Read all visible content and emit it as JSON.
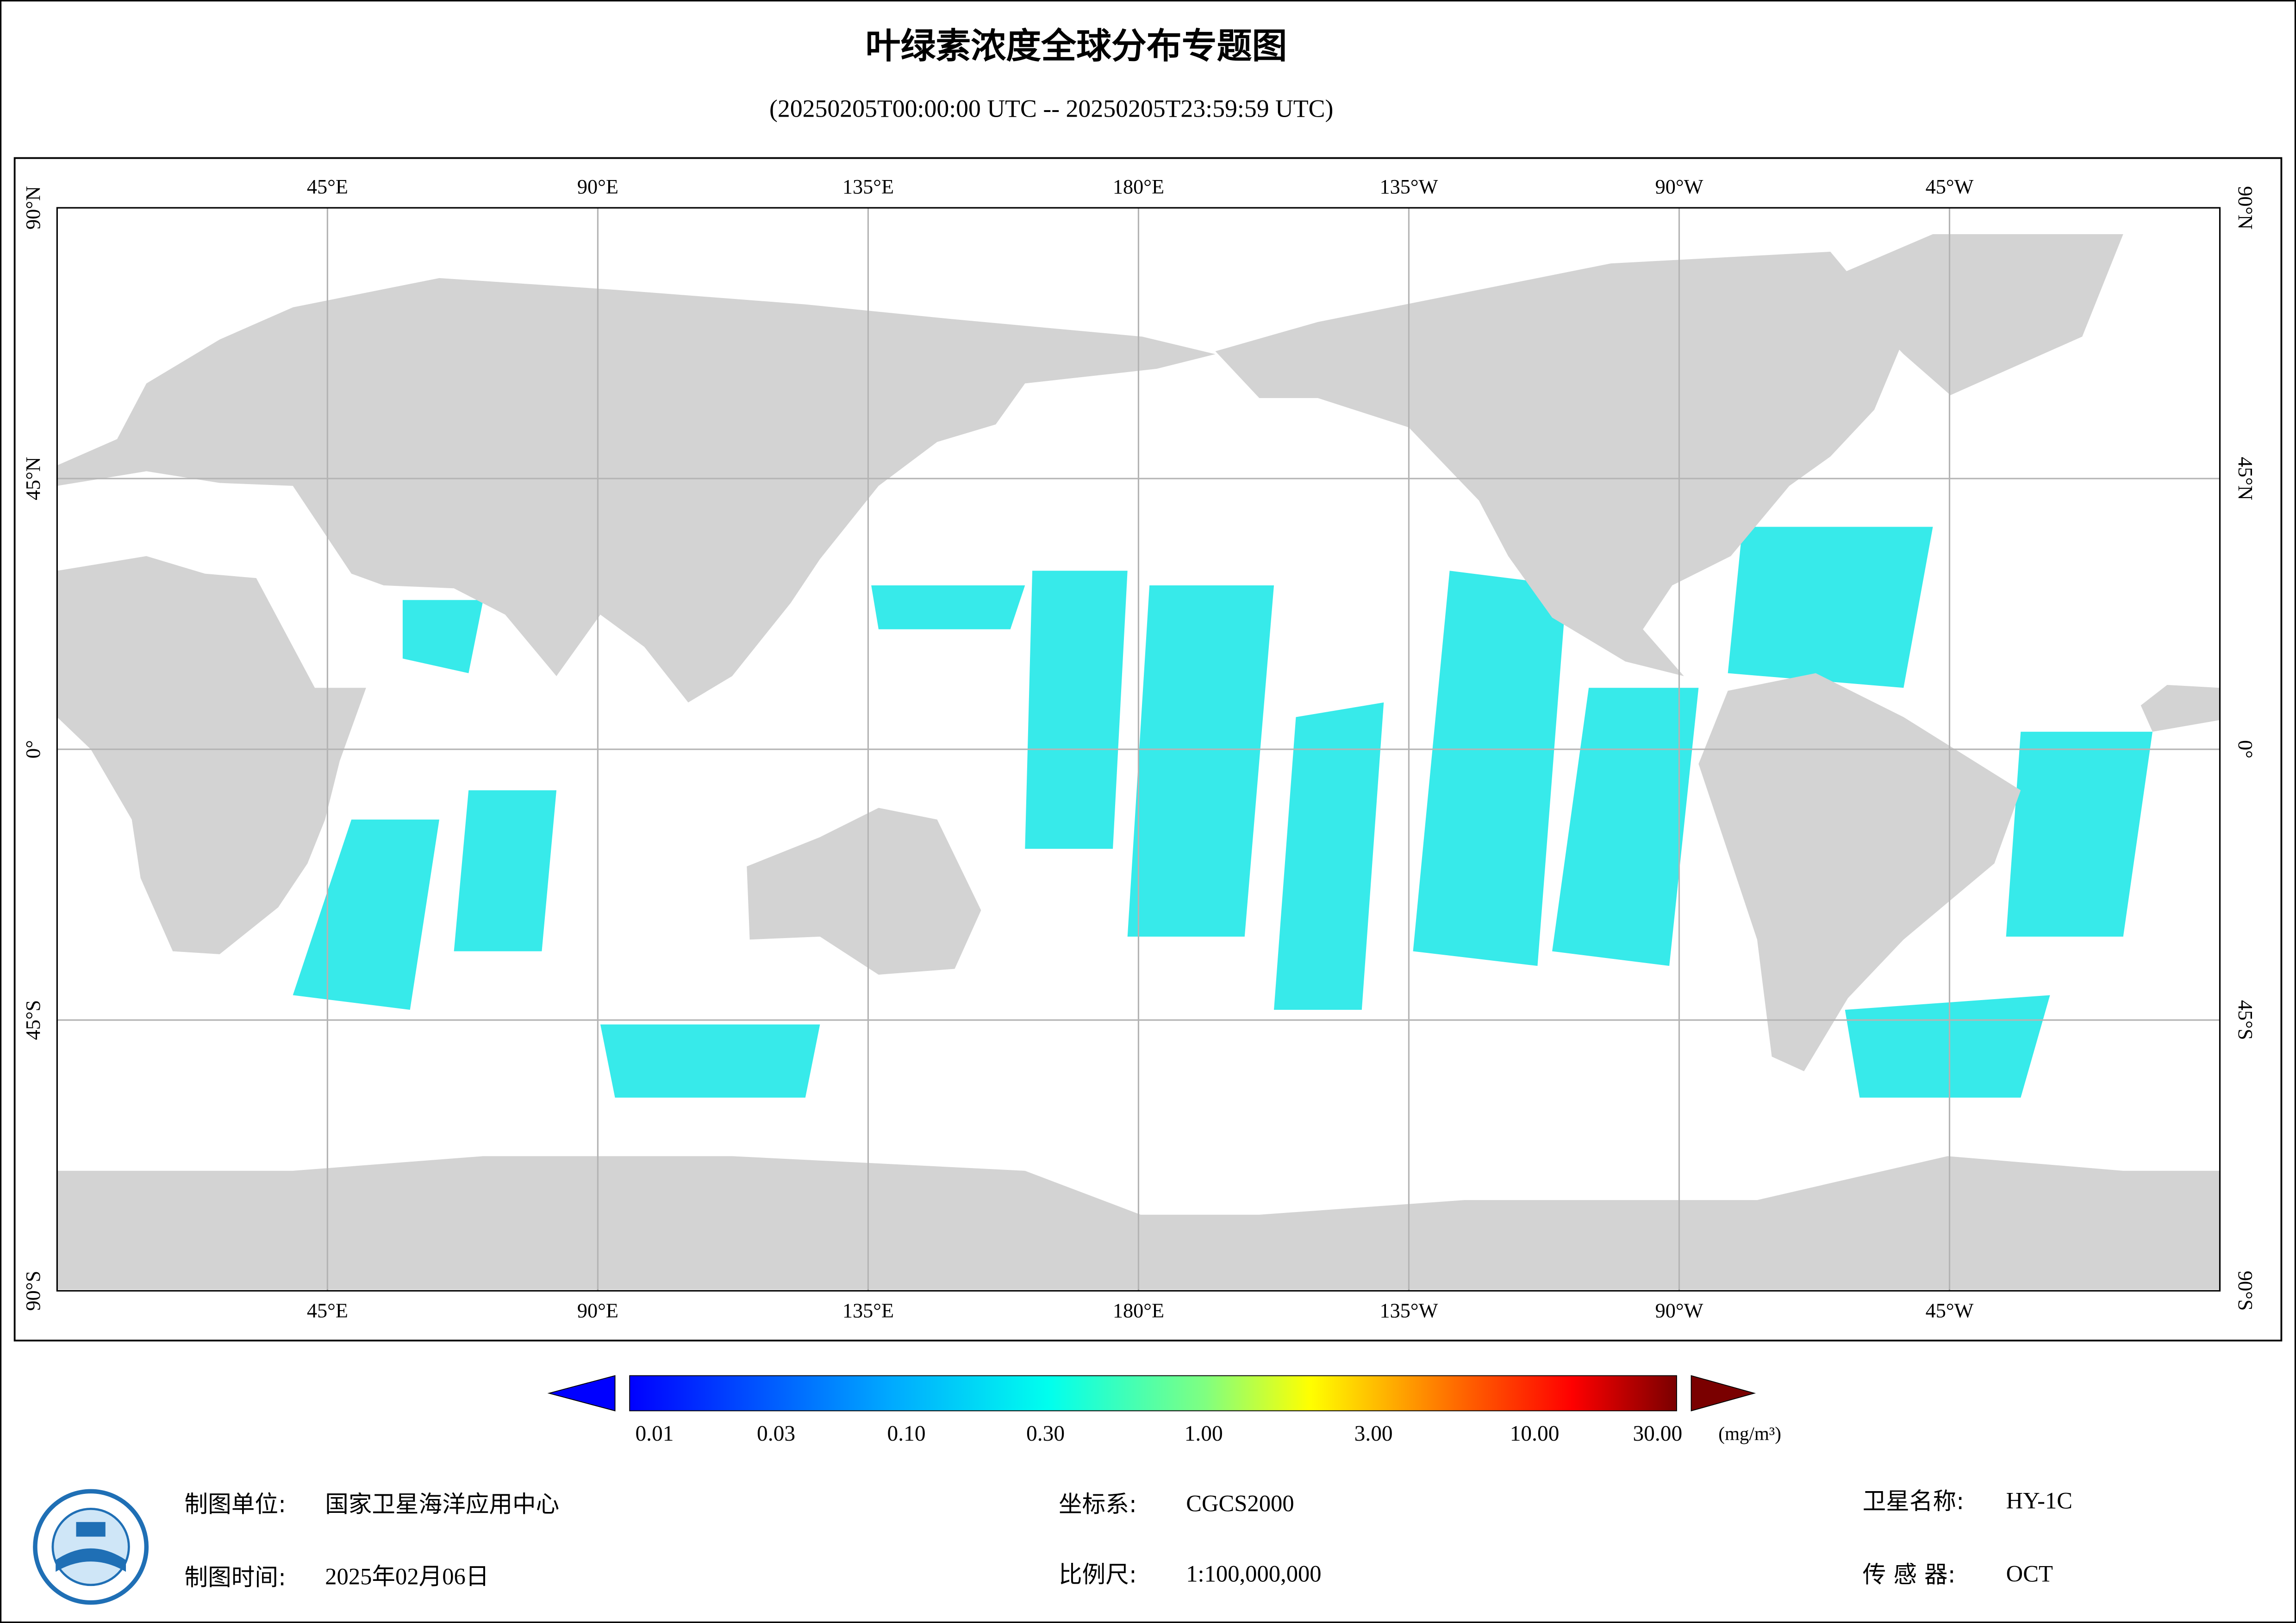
{
  "header": {
    "title": "叶绿素浓度全球分布专题图",
    "subtitle": "(20250205T00:00:00 UTC -- 20250205T23:59:59 UTC)"
  },
  "map": {
    "lon_labels": [
      "45°E",
      "90°E",
      "135°E",
      "180°E",
      "135°W",
      "90°W",
      "45°W"
    ],
    "lat_labels": [
      "90°N",
      "45°N",
      "0°",
      "45°S",
      "90°S"
    ]
  },
  "colorbar": {
    "labels": [
      "0.01",
      "0.03",
      "0.10",
      "0.30",
      "1.00",
      "3.00",
      "10.00",
      "30.00"
    ],
    "unit": "(mg/m³)"
  },
  "footer": {
    "items": [
      {
        "label": "制图单位:",
        "value": "国家卫星海洋应用中心"
      },
      {
        "label": "制图时间:",
        "value": "2025年02月06日"
      },
      {
        "label": "坐标系:",
        "value": "CGCS2000"
      },
      {
        "label": "比例尺:",
        "value": "1:100,000,000"
      },
      {
        "label": "卫星名称:",
        "value": "HY-1C"
      },
      {
        "label": "传 感 器:",
        "value": "OCT"
      }
    ]
  }
}
